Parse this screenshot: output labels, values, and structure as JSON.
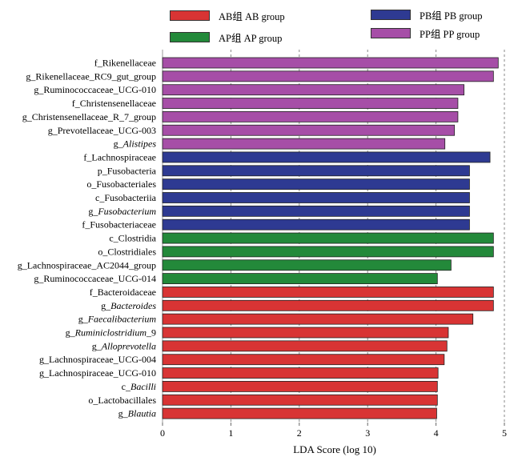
{
  "colors": {
    "AB": "#d83434",
    "AP": "#23893a",
    "PB": "#2e3a92",
    "PP": "#a64ea7"
  },
  "legend": {
    "ab": "AB组 AB group",
    "ap": "AP组 AP group",
    "pb": "PB组 PB group",
    "pp": "PP组 PP group"
  },
  "chart_data": {
    "type": "bar",
    "orientation": "horizontal",
    "xlabel": "LDA Score (log 10)",
    "xlim": [
      0,
      5
    ],
    "xticks": [
      0,
      1,
      2,
      3,
      4,
      5
    ],
    "grid": "vertical dashed",
    "legend_position": "top",
    "series": [
      {
        "name": "PP group",
        "key": "PP"
      },
      {
        "name": "PB group",
        "key": "PB"
      },
      {
        "name": "AP group",
        "key": "AP"
      },
      {
        "name": "AB group",
        "key": "AB"
      }
    ],
    "bars": [
      {
        "label": "f_Rikenellaceae",
        "value": 4.91,
        "group": "PP"
      },
      {
        "label": "g_Rikenellaceae_RC9_gut_group",
        "value": 4.84,
        "group": "PP"
      },
      {
        "label": "g_Ruminococcaceae_UCG-010",
        "value": 4.41,
        "group": "PP"
      },
      {
        "label": "f_Christensenellaceae",
        "value": 4.32,
        "group": "PP"
      },
      {
        "label": "g_Christensenellaceae_R_7_group",
        "value": 4.32,
        "group": "PP"
      },
      {
        "label": "g_Prevotellaceae_UCG-003",
        "value": 4.27,
        "group": "PP"
      },
      {
        "label": "g_Alistipes",
        "value": 4.13,
        "group": "PP",
        "italic": "Alistipes"
      },
      {
        "label": "f_Lachnospiraceae",
        "value": 4.79,
        "group": "PB"
      },
      {
        "label": "p_Fusobacteria",
        "value": 4.49,
        "group": "PB"
      },
      {
        "label": "o_Fusobacteriales",
        "value": 4.49,
        "group": "PB"
      },
      {
        "label": "c_Fusobacteriia",
        "value": 4.49,
        "group": "PB"
      },
      {
        "label": "g_Fusobacterium",
        "value": 4.49,
        "group": "PB",
        "italic": "Fusobacterium"
      },
      {
        "label": "f_Fusobacteriaceae",
        "value": 4.49,
        "group": "PB"
      },
      {
        "label": "c_Clostridia",
        "value": 4.84,
        "group": "AP"
      },
      {
        "label": "o_Clostridiales",
        "value": 4.84,
        "group": "AP"
      },
      {
        "label": "g_Lachnospiraceae_AC2044_group",
        "value": 4.22,
        "group": "AP"
      },
      {
        "label": "g_Ruminococcaceae_UCG-014",
        "value": 4.02,
        "group": "AP"
      },
      {
        "label": "f_Bacteroidaceae",
        "value": 4.84,
        "group": "AB"
      },
      {
        "label": "g_Bacteroides",
        "value": 4.84,
        "group": "AB",
        "italic": "Bacteroides"
      },
      {
        "label": "g_Faecalibacterium",
        "value": 4.54,
        "group": "AB",
        "italic": "Faecalibacterium"
      },
      {
        "label": "g_Ruminiclostridium_9",
        "value": 4.18,
        "group": "AB",
        "italic": "Ruminiclostridium"
      },
      {
        "label": "g_Alloprevotella",
        "value": 4.16,
        "group": "AB",
        "italic": "Alloprevotella"
      },
      {
        "label": "g_Lachnospiraceae_UCG-004",
        "value": 4.12,
        "group": "AB"
      },
      {
        "label": "g_Lachnospiraceae_UCG-010",
        "value": 4.03,
        "group": "AB"
      },
      {
        "label": "c_Bacilli",
        "value": 4.02,
        "group": "AB",
        "italic": "Bacilli"
      },
      {
        "label": "o_Lactobacillales",
        "value": 4.02,
        "group": "AB"
      },
      {
        "label": "g_Blautia",
        "value": 4.01,
        "group": "AB",
        "italic": "Blautia"
      }
    ]
  }
}
